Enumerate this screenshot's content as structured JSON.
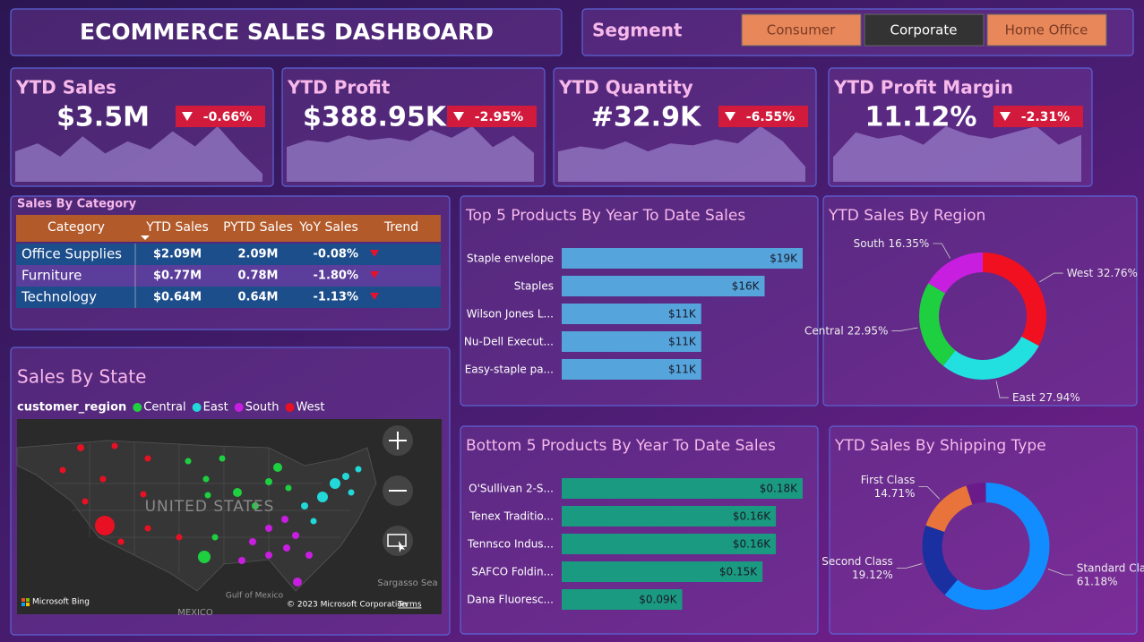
{
  "header": {
    "title": "ECOMMERCE SALES DASHBOARD"
  },
  "segment": {
    "label": "Segment",
    "options": [
      "Consumer",
      "Corporate",
      "Home Office"
    ],
    "selected": "Corporate"
  },
  "kpis": [
    {
      "title": "YTD Sales",
      "value": "$3.5M",
      "change": "-0.66%",
      "trend": [
        30,
        38,
        25,
        45,
        28,
        40,
        32,
        50,
        35,
        55,
        30,
        8
      ]
    },
    {
      "title": "YTD Profit",
      "value": "$388.95K",
      "change": "-2.95%",
      "trend": [
        30,
        36,
        34,
        40,
        36,
        38,
        35,
        45,
        38,
        48,
        30,
        40,
        25
      ]
    },
    {
      "title": "YTD Quantity",
      "value": "#32.9K",
      "change": "-6.55%",
      "trend": [
        30,
        35,
        32,
        40,
        30,
        38,
        36,
        42,
        38,
        55,
        40,
        15
      ]
    },
    {
      "title": "YTD Profit Margin",
      "value": "11.12%",
      "change": "-2.31%",
      "trend": [
        20,
        40,
        35,
        38,
        30,
        45,
        38,
        35,
        40,
        45,
        30,
        38
      ]
    }
  ],
  "category_table": {
    "title": "Sales By Category",
    "columns": [
      "Category",
      "YTD Sales",
      "PYTD Sales",
      "YoY Sales",
      "Trend"
    ],
    "rows": [
      [
        "Office Supplies",
        "$2.09M",
        "2.09M",
        "-0.08%"
      ],
      [
        "Furniture",
        "$0.77M",
        "0.78M",
        "-1.80%"
      ],
      [
        "Technology",
        "$0.64M",
        "0.64M",
        "-1.13%"
      ]
    ]
  },
  "sales_by_state": {
    "title": "Sales By State",
    "legend_title": "customer_region",
    "legend": [
      {
        "name": "Central",
        "color": "#1ed040"
      },
      {
        "name": "East",
        "color": "#22d8d8"
      },
      {
        "name": "South",
        "color": "#c81ee0"
      },
      {
        "name": "West",
        "color": "#e81123"
      }
    ],
    "map_labels": [
      "UNITED STATES",
      "Sargasso Sea",
      "Gulf of Mexico",
      "MEXICO"
    ],
    "attribution": [
      "Microsoft Bing",
      "© 2023 Microsoft Corporation",
      "Terms"
    ]
  },
  "chart_data": [
    {
      "type": "bar",
      "title": "Top 5 Products By Year To Date Sales",
      "categories": [
        "Staple envelope",
        "Staples",
        "Wilson Jones L...",
        "Nu-Dell Execut...",
        "Easy-staple pa..."
      ],
      "values": [
        19,
        16,
        11,
        11,
        11
      ],
      "value_labels": [
        "$19K",
        "$16K",
        "$11K",
        "$11K",
        "$11K"
      ],
      "color": "#55a4db"
    },
    {
      "type": "bar",
      "title": "Bottom 5 Products By Year To Date Sales",
      "categories": [
        "O'Sullivan 2-S...",
        "Tenex Traditio...",
        "Tennsco Indus...",
        "SAFCO Foldin...",
        "Dana Fluoresc..."
      ],
      "values": [
        0.18,
        0.16,
        0.16,
        0.15,
        0.09
      ],
      "value_labels": [
        "$0.18K",
        "$0.16K",
        "$0.16K",
        "$0.15K",
        "$0.09K"
      ],
      "color": "#1a9a80"
    },
    {
      "type": "pie",
      "title": "YTD Sales By Region",
      "categories": [
        "West",
        "East",
        "Central",
        "South"
      ],
      "values": [
        32.76,
        27.94,
        22.95,
        16.35
      ],
      "value_labels": [
        "32.76%",
        "27.94%",
        "22.95%",
        "16.35%"
      ],
      "colors": [
        "#f01020",
        "#22e0e0",
        "#1ed040",
        "#c81ee0"
      ]
    },
    {
      "type": "pie",
      "title": "YTD Sales By Shipping Type",
      "categories": [
        "Standard Class",
        "Second Class",
        "First Class",
        null
      ],
      "values": [
        61.18,
        19.12,
        14.71,
        4.99
      ],
      "value_labels": [
        "61.18%",
        "19.12%",
        "14.71%",
        null
      ],
      "colors": [
        "#118dff",
        "#1a2fa0",
        "#e8743b",
        "#6b1a8a"
      ]
    }
  ]
}
